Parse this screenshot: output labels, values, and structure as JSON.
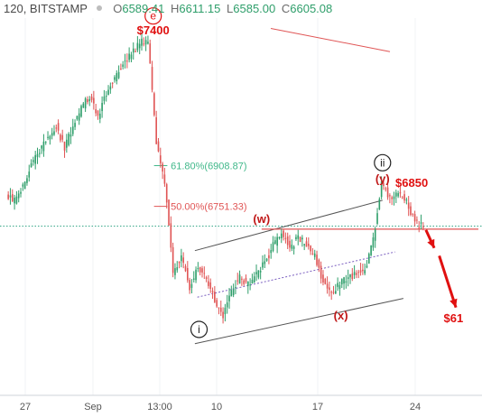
{
  "header": {
    "symbol": "120, BITSTAMP",
    "ohlc": [
      {
        "key": "O",
        "value": "6589.41"
      },
      {
        "key": "H",
        "value": "6611.15"
      },
      {
        "key": "L",
        "value": "6585.00"
      },
      {
        "key": "C",
        "value": "6605.08"
      }
    ]
  },
  "chart_data": {
    "type": "candlestick",
    "x_ticks": [
      "27",
      "Sep",
      "13:00",
      "10",
      "17",
      "24"
    ],
    "y_range": [
      6020,
      7480
    ],
    "up_color": "#2e9e6a",
    "down_color": "#e05555",
    "annotation_color": "#e01010",
    "series": [
      {
        "name": "price",
        "points": [
          [
            0,
            6800
          ],
          [
            1,
            6770
          ],
          [
            2,
            6830
          ],
          [
            3,
            6910
          ],
          [
            4,
            6960
          ],
          [
            5,
            7020
          ],
          [
            6,
            7060
          ],
          [
            7,
            6980
          ],
          [
            8,
            7060
          ],
          [
            9,
            7130
          ],
          [
            10,
            7180
          ],
          [
            11,
            7100
          ],
          [
            12,
            7190
          ],
          [
            13,
            7250
          ],
          [
            14,
            7300
          ],
          [
            15,
            7340
          ],
          [
            16,
            7385
          ],
          [
            17,
            7390
          ],
          [
            18,
            7000
          ],
          [
            19,
            6850
          ],
          [
            20,
            6500
          ],
          [
            21,
            6560
          ],
          [
            22,
            6440
          ],
          [
            23,
            6520
          ],
          [
            24,
            6470
          ],
          [
            25,
            6390
          ],
          [
            26,
            6330
          ],
          [
            27,
            6420
          ],
          [
            28,
            6480
          ],
          [
            29,
            6450
          ],
          [
            30,
            6490
          ],
          [
            31,
            6530
          ],
          [
            32,
            6600
          ],
          [
            33,
            6650
          ],
          [
            34,
            6590
          ],
          [
            35,
            6630
          ],
          [
            36,
            6600
          ],
          [
            37,
            6560
          ],
          [
            38,
            6460
          ],
          [
            39,
            6420
          ],
          [
            40,
            6450
          ],
          [
            41,
            6480
          ],
          [
            42,
            6490
          ],
          [
            43,
            6500
          ],
          [
            44,
            6620
          ],
          [
            45,
            6840
          ],
          [
            46,
            6780
          ],
          [
            47,
            6800
          ],
          [
            48,
            6770
          ],
          [
            49,
            6690
          ],
          [
            50,
            6670
          ]
        ]
      }
    ],
    "levels": [
      {
        "label": "61.80%(6908.87)",
        "value": 6908.87,
        "color": "#40b88a"
      },
      {
        "label": "50.00%(6751.33)",
        "value": 6751.33,
        "color": "#e05555"
      }
    ],
    "support_level": 6663,
    "last_price": 6675,
    "annotations": [
      {
        "text": "$7400",
        "color": "#e01010",
        "bold": true,
        "anchor": [
          17.5,
          7435
        ]
      },
      {
        "text": "e",
        "color": "#e01010",
        "circled": true,
        "anchor": [
          17.5,
          7488
        ]
      },
      {
        "text": "(w)",
        "color": "#c01818",
        "bold": true,
        "anchor": [
          30.5,
          6705
        ]
      },
      {
        "text": "(y)",
        "color": "#c01818",
        "bold": true,
        "anchor": [
          45,
          6860
        ]
      },
      {
        "text": "$6850",
        "color": "#e01010",
        "bold": true,
        "anchor": [
          48.5,
          6845
        ]
      },
      {
        "text": "ii",
        "color": "#222222",
        "circled": true,
        "anchor": [
          45,
          6920
        ]
      },
      {
        "text": "(x)",
        "color": "#c01818",
        "bold": true,
        "anchor": [
          40,
          6330
        ]
      },
      {
        "text": "i",
        "color": "#222222",
        "circled": true,
        "anchor": [
          23,
          6275
        ]
      },
      {
        "text": "$61",
        "color": "#e01010",
        "bold": true,
        "anchor": [
          53.5,
          6320
        ]
      }
    ]
  }
}
